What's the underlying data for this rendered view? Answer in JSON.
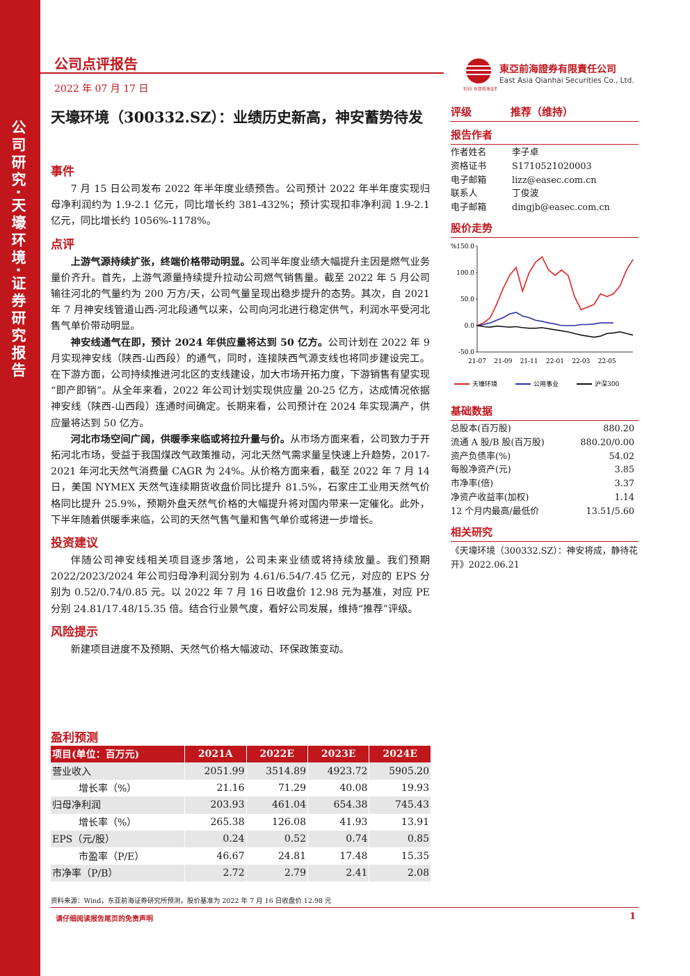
{
  "sidebar": "公司研究·天壕环境·证券研究报告",
  "header": {
    "report_type": "公司点评报告",
    "date": "2022 年 07 月 17 日",
    "company_cn": "東亞前海證券有限責任公司",
    "company_en": "East Asia Qianhai Securities Co., Ltd.",
    "logo_caption": "EAS 东亚前海证券"
  },
  "title": "天壕环境（300332.SZ）：业绩历史新高，神安蓄势待发",
  "sections": [
    {
      "heading": "事件",
      "paragraphs": [
        {
          "lead": "",
          "text": "7 月 15 日公司发布 2022 年半年度业绩预告。公司预计 2022 年半年度实现归母净利润约为 1.9-2.1 亿元，同比增长约 381-432%；预计实现扣非净利润 1.9-2.1 亿元，同比增长约 1056%-1178%。"
        }
      ]
    },
    {
      "heading": "点评",
      "paragraphs": [
        {
          "lead": "上游气源持续扩张，终端价格带动明显。",
          "text": "公司半年度业绩大幅提升主因是燃气业务量价齐升。首先，上游气源量持续提升拉动公司燃气销售量。截至 2022 年 5 月公司输往河北的气量约为 200 万方/天，公司气量呈现出稳步提升的态势。其次，自 2021 年 7 月神安线管道山西-河北段通气以来，公司向河北进行稳定供气，利润水平受河北售气单价带动明显。"
        },
        {
          "lead": "神安线通气在即，预计 2024 年供应量将达到 50 亿方。",
          "text": "公司计划在 2022 年 9 月实现神安线（陕西-山西段）的通气，同时，连接陕西气源支线也将同步建设完工。在下游方面，公司持续推进河北区的支线建设，加大市场开拓力度，下游销售有望实现“即产即销”。从全年来看，2022 年公司计划实现供应量 20-25 亿方，达成情况依据神安线（陕西-山西段）连通时间确定。长期来看，公司预计在 2024 年实现满产，供应量将达到 50 亿方。"
        },
        {
          "lead": "河北市场空间广阔，供暖季来临或将拉升量与价。",
          "text": "从市场方面来看，公司致力于开拓河北市场，受益于我国煤改气政策推动，河北天然气需求量呈快速上升趋势，2017-2021 年河北天然气消费量 CAGR 为 24%。从价格方面来看，截至 2022 年 7 月 14 日，美国 NYMEX 天然气连续期货收盘价同比提升 81.5%，石家庄工业用天然气价格同比提升 25.9%，预期外盘天然气价格的大幅提升将对国内带来一定催化。此外，下半年随着供暖季来临，公司的天然气售气量和售气单价或将进一步增长。"
        }
      ]
    },
    {
      "heading": "投资建议",
      "paragraphs": [
        {
          "lead": "",
          "text": "伴随公司神安线相关项目逐步落地，公司未来业绩或将持续放量。我们预期 2022/2023/2024 年公司归母净利润分别为 4.61/6.54/7.45 亿元，对应的 EPS 分别为 0.52/0.74/0.85 元。以 2022 年 7 月 16 日收盘价 12.98 元为基准，对应 PE 分别 24.81/17.48/15.35 倍。结合行业景气度，看好公司发展，维持“推荐”评级。"
        }
      ]
    },
    {
      "heading": "风险提示",
      "paragraphs": [
        {
          "lead": "",
          "text": "新建项目进度不及预期、天然气价格大幅波动、环保政策变动。"
        }
      ]
    }
  ],
  "rating": {
    "label": "评级",
    "value": "推荐（维持）"
  },
  "authors": {
    "heading": "报告作者",
    "rows": [
      [
        "作者姓名",
        "李子卓"
      ],
      [
        "资格证书",
        "S1710521020003"
      ],
      [
        "电子邮箱",
        "lizz@easec.com.cn"
      ],
      [
        "联系人",
        "丁俊波"
      ],
      [
        "电子邮箱",
        "dingjb@easec.com.cn"
      ]
    ]
  },
  "stock_chart_heading": "股价走势",
  "chart_data": {
    "type": "line",
    "y_unit": "%",
    "categories": [
      "21-07",
      null,
      null,
      null,
      "21-09",
      null,
      null,
      null,
      "21-11",
      null,
      null,
      null,
      "22-01",
      null,
      null,
      null,
      "22-03",
      null,
      null,
      null,
      "22-05",
      null,
      null,
      null,
      null
    ],
    "series": [
      {
        "name": "天壕环境",
        "color": "#e0201f",
        "values": [
          0,
          5,
          15,
          40,
          70,
          95,
          110,
          65,
          100,
          120,
          130,
          105,
          95,
          105,
          95,
          55,
          30,
          35,
          40,
          60,
          55,
          60,
          75,
          105,
          125
        ]
      },
      {
        "name": "公用事业",
        "color": "#2b2f9e",
        "values": [
          0,
          2,
          5,
          10,
          15,
          22,
          25,
          18,
          15,
          10,
          8,
          5,
          3,
          0,
          0,
          0,
          2,
          2,
          3,
          5,
          5,
          5,
          null,
          null,
          null
        ]
      },
      {
        "name": "沪深300",
        "color": "#111111",
        "values": [
          0,
          -2,
          -3,
          -1,
          -2,
          -3,
          -2,
          -4,
          -5,
          -5,
          -4,
          -6,
          -8,
          -10,
          -12,
          -15,
          -18,
          -20,
          -22,
          -20,
          -15,
          -14,
          -12,
          -15,
          -18
        ]
      }
    ],
    "ylim": [
      -50,
      150
    ],
    "yticks": [
      {
        "value": -50,
        "label": "-50.0"
      },
      {
        "value": 0,
        "label": "0.0"
      },
      {
        "value": 50,
        "label": "50.0"
      },
      {
        "value": 100,
        "label": "100.0"
      },
      {
        "value": 150,
        "label": "150.0"
      }
    ]
  },
  "basic_data": {
    "heading": "基础数据",
    "rows": [
      [
        "总股本(百万股)",
        "880.20"
      ],
      [
        "流通 A 股/B 股(百万股)",
        "880.20/0.00"
      ],
      [
        "资产负债率(%)",
        "54.02"
      ],
      [
        "每股净资产(元)",
        "3.85"
      ],
      [
        "市净率(倍)",
        "3.37"
      ],
      [
        "净资产收益率(加权)",
        "1.14"
      ],
      [
        "12 个月内最高/最低价",
        "13.51/5.60"
      ]
    ]
  },
  "related": {
    "heading": "相关研究",
    "items": [
      "《天壕环境（300332.SZ）：神安将成，静待花开》2022.06.21"
    ]
  },
  "forecast": {
    "heading": "盈利预测",
    "columns": [
      "项目(单位：百万元)",
      "2021A",
      "2022E",
      "2023E",
      "2024E"
    ],
    "rows": [
      [
        "营业收入",
        "2051.99",
        "3514.89",
        "4923.72",
        "5905.20"
      ],
      [
        "增长率（%）",
        "21.16",
        "71.29",
        "40.08",
        "19.93"
      ],
      [
        "归母净利润",
        "203.93",
        "461.04",
        "654.38",
        "745.43"
      ],
      [
        "增长率（%）",
        "265.38",
        "126.08",
        "41.93",
        "13.91"
      ],
      [
        "EPS（元/股）",
        "0.24",
        "0.52",
        "0.74",
        "0.85"
      ],
      [
        "市盈率（P/E）",
        "46.67",
        "24.81",
        "17.48",
        "15.35"
      ],
      [
        "市净率（P/B）",
        "2.72",
        "2.79",
        "2.41",
        "2.08"
      ]
    ]
  },
  "source": "资料来源：Wind，东亚前海证券研究所预测，股价基准为 2022 年 7 月 16 日收盘价 12.98 元",
  "footer": {
    "disclaimer": "请仔细阅读报告尾页的免责声明",
    "page": "1"
  }
}
